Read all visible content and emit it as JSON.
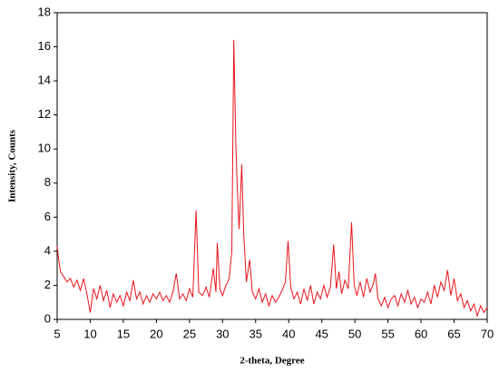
{
  "chart_data": {
    "type": "line",
    "x_label": "2-theta, Degree",
    "y_label": "Intensity, Counts",
    "color": "#e8141c",
    "x": [
      5,
      5.2,
      5.5,
      6,
      6.5,
      7,
      7.5,
      8,
      8.5,
      9,
      9.5,
      10,
      10.5,
      11,
      11.5,
      12,
      12.5,
      13,
      13.5,
      14,
      14.5,
      15,
      15.5,
      16,
      16.5,
      17,
      17.5,
      18,
      18.5,
      19,
      19.5,
      20,
      20.5,
      21,
      21.5,
      22,
      22.5,
      23,
      23.5,
      24,
      24.5,
      25,
      25.5,
      26,
      26.4,
      27,
      27.5,
      28,
      28.6,
      29,
      29.2,
      29.6,
      30,
      30.5,
      31,
      31.4,
      31.7,
      32,
      32.2,
      32.5,
      32.9,
      33.2,
      33.6,
      34.1,
      34.5,
      35,
      35.5,
      36,
      36.5,
      37,
      37.5,
      38,
      38.5,
      39,
      39.5,
      39.9,
      40.3,
      40.8,
      41.3,
      41.8,
      42.3,
      42.8,
      43.3,
      43.8,
      44.3,
      44.8,
      45.3,
      45.8,
      46.3,
      46.8,
      47.2,
      47.6,
      48,
      48.5,
      49,
      49.5,
      49.9,
      50.3,
      50.8,
      51.3,
      51.8,
      52.3,
      52.8,
      53.1,
      53.5,
      54,
      54.5,
      55,
      55.5,
      56,
      56.5,
      57,
      57.5,
      58,
      58.5,
      59,
      59.5,
      60,
      60.5,
      61,
      61.5,
      62,
      62.5,
      63,
      63.5,
      64,
      64.5,
      65,
      65.5,
      66,
      66.5,
      67,
      67.5,
      68,
      68.5,
      69,
      69.5,
      70
    ],
    "values": [
      4.3,
      3.6,
      2.8,
      2.5,
      2.2,
      2.4,
      1.9,
      2.3,
      1.7,
      2.4,
      1.5,
      0.4,
      1.8,
      1.2,
      2.0,
      1.1,
      1.7,
      0.7,
      1.5,
      1.0,
      1.4,
      0.8,
      1.6,
      1.1,
      2.3,
      1.2,
      1.6,
      0.9,
      1.4,
      1.0,
      1.5,
      1.2,
      1.6,
      1.1,
      1.4,
      1.0,
      1.6,
      2.7,
      1.2,
      1.5,
      1.1,
      1.8,
      1.3,
      6.4,
      1.6,
      1.4,
      1.9,
      1.3,
      3.0,
      1.6,
      4.5,
      1.8,
      1.4,
      2.0,
      2.4,
      4.0,
      16.4,
      10.4,
      8.0,
      5.3,
      9.1,
      5.0,
      2.2,
      3.5,
      1.6,
      1.2,
      1.8,
      1.0,
      1.5,
      0.8,
      1.4,
      1.0,
      1.3,
      1.7,
      2.2,
      4.6,
      1.9,
      1.2,
      1.6,
      0.9,
      1.8,
      1.1,
      2.0,
      0.9,
      1.6,
      1.2,
      2.0,
      1.3,
      1.9,
      4.4,
      1.8,
      2.8,
      1.5,
      2.3,
      1.8,
      5.7,
      2.0,
      1.4,
      2.2,
      1.3,
      2.4,
      1.6,
      2.1,
      2.7,
      1.2,
      0.8,
      1.3,
      0.7,
      1.2,
      1.4,
      0.8,
      1.5,
      1.0,
      1.7,
      0.9,
      1.3,
      0.7,
      1.2,
      1.0,
      1.6,
      0.9,
      2.0,
      1.3,
      2.2,
      1.7,
      2.9,
      1.4,
      2.4,
      1.1,
      1.5,
      0.7,
      1.1,
      0.5,
      0.9,
      0.2,
      0.8,
      0.4,
      0.7
    ],
    "xlim": [
      5,
      70
    ],
    "xticks": [
      5,
      10,
      15,
      20,
      25,
      30,
      35,
      40,
      45,
      50,
      55,
      60,
      65,
      70
    ],
    "ylim": [
      0,
      18
    ],
    "yticks": [
      0,
      2,
      4,
      6,
      8,
      10,
      12,
      14,
      16,
      18
    ]
  }
}
